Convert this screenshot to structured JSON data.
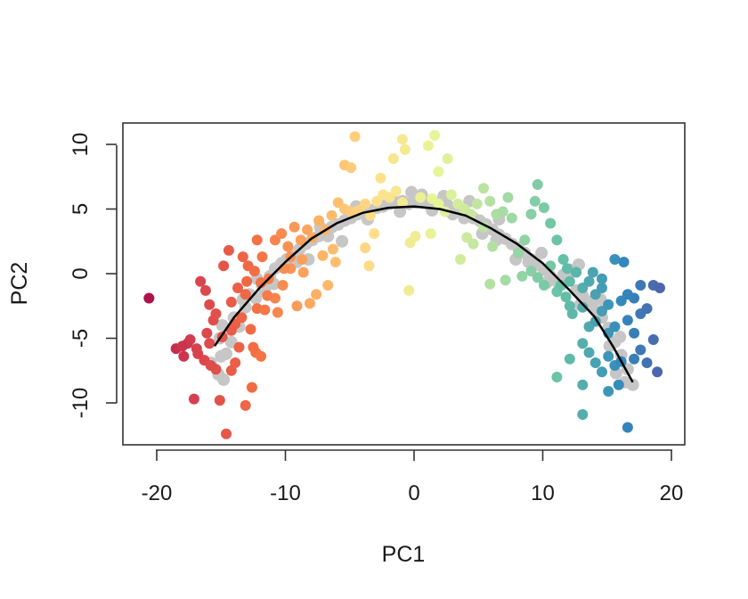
{
  "chart_data": {
    "type": "scatter",
    "title": "",
    "xlabel": "PC1",
    "ylabel": "PC2",
    "xlim": [
      -22,
      21
    ],
    "ylim": [
      -13.2,
      11.7
    ],
    "xticks": [
      -20,
      -10,
      0,
      10,
      20
    ],
    "xtick_labels": [
      "-20",
      "-10",
      "0",
      "10",
      "20"
    ],
    "yticks": [
      -10,
      -5,
      0,
      5,
      10
    ],
    "ytick_labels": [
      "-10",
      "-5",
      "0",
      "5",
      "10"
    ],
    "grid": false,
    "legend": "none",
    "colors": {
      "background_points": "#c6c6c6",
      "curve": "#000000",
      "gradient": [
        "#9e0142",
        "#d53e4f",
        "#f46d43",
        "#fdae61",
        "#fee08b",
        "#e6f598",
        "#abdda4",
        "#66c2a5",
        "#3288bd",
        "#5e4fa2"
      ]
    },
    "principal_curve": {
      "x": [
        -15.5,
        -14,
        -12,
        -10,
        -8,
        -6,
        -4,
        -2,
        0,
        2,
        4,
        6,
        8,
        10,
        12,
        14,
        15.5,
        17
      ],
      "y": [
        -5.6,
        -3.4,
        -1.1,
        0.9,
        2.7,
        3.9,
        4.7,
        5.1,
        5.2,
        5.0,
        4.5,
        3.5,
        2.3,
        0.8,
        -1.2,
        -3.3,
        -5.7,
        -8.4
      ]
    },
    "gray_points": [
      [
        -15.8,
        -6.9
      ],
      [
        -15.2,
        -7.8
      ],
      [
        -14.8,
        -8.2
      ],
      [
        -14.6,
        -6.2
      ],
      [
        -15.1,
        -5.0
      ],
      [
        -14.2,
        -5.3
      ],
      [
        -14.9,
        -4.0
      ],
      [
        -14.0,
        -3.4
      ],
      [
        -13.6,
        -4.1
      ],
      [
        -13.1,
        -2.6
      ],
      [
        -12.8,
        -1.6
      ],
      [
        -12.3,
        -1.9
      ],
      [
        -11.8,
        -0.9
      ],
      [
        -11.2,
        -0.2
      ],
      [
        -10.8,
        0.4
      ],
      [
        -10.3,
        0.8
      ],
      [
        -9.9,
        1.1
      ],
      [
        -9.4,
        1.6
      ],
      [
        -8.9,
        1.9
      ],
      [
        -8.4,
        2.3
      ],
      [
        -7.9,
        2.6
      ],
      [
        -7.4,
        2.9
      ],
      [
        -6.9,
        3.3
      ],
      [
        -6.4,
        3.6
      ],
      [
        -5.9,
        3.8
      ],
      [
        -5.4,
        4.1
      ],
      [
        -4.9,
        4.3
      ],
      [
        -4.4,
        4.6
      ],
      [
        -3.9,
        4.7
      ],
      [
        -3.4,
        4.9
      ],
      [
        -2.9,
        5.1
      ],
      [
        -2.4,
        5.2
      ],
      [
        -1.9,
        5.4
      ],
      [
        -1.4,
        5.5
      ],
      [
        -0.9,
        5.6
      ],
      [
        -0.4,
        5.4
      ],
      [
        0.1,
        5.5
      ],
      [
        0.6,
        5.6
      ],
      [
        1.1,
        5.4
      ],
      [
        1.6,
        5.3
      ],
      [
        2.1,
        5.6
      ],
      [
        2.6,
        5.3
      ],
      [
        3.1,
        5.1
      ],
      [
        3.6,
        4.9
      ],
      [
        4.1,
        4.6
      ],
      [
        4.6,
        4.3
      ],
      [
        5.1,
        4.1
      ],
      [
        5.6,
        3.8
      ],
      [
        6.1,
        3.4
      ],
      [
        6.6,
        3.0
      ],
      [
        7.1,
        2.7
      ],
      [
        7.6,
        2.3
      ],
      [
        8.1,
        2.0
      ],
      [
        8.6,
        1.6
      ],
      [
        9.1,
        1.1
      ],
      [
        9.6,
        0.7
      ],
      [
        10.1,
        0.3
      ],
      [
        10.6,
        -0.2
      ],
      [
        11.1,
        -0.6
      ],
      [
        11.6,
        -0.1
      ],
      [
        12.1,
        0.3
      ],
      [
        12.6,
        -1.3
      ],
      [
        13.1,
        -1.7
      ],
      [
        13.6,
        -2.3
      ],
      [
        14.1,
        -2.9
      ],
      [
        14.6,
        -3.4
      ],
      [
        15.1,
        -4.2
      ],
      [
        15.6,
        -5.3
      ],
      [
        16.1,
        -6.3
      ],
      [
        16.6,
        -7.4
      ],
      [
        17.0,
        -8.6
      ],
      [
        16.4,
        -8.4
      ],
      [
        15.7,
        -7.7
      ],
      [
        -13.3,
        -2.0
      ],
      [
        -11.6,
        -1.3
      ],
      [
        -9.1,
        0.9
      ],
      [
        -6.7,
        2.9
      ],
      [
        -3.6,
        4.2
      ],
      [
        -1.1,
        4.8
      ],
      [
        1.4,
        4.9
      ],
      [
        3.9,
        4.3
      ],
      [
        6.4,
        2.6
      ],
      [
        8.9,
        0.9
      ],
      [
        11.4,
        -0.9
      ],
      [
        13.9,
        -2.1
      ],
      [
        -15.0,
        -6.4
      ],
      [
        -7.3,
        3.6
      ],
      [
        -4.5,
        5.2
      ],
      [
        -2.3,
        5.9
      ],
      [
        -0.2,
        6.3
      ],
      [
        0.6,
        6.1
      ],
      [
        2.3,
        6.0
      ],
      [
        4.3,
        5.6
      ],
      [
        6.6,
        4.2
      ],
      [
        9.9,
        1.6
      ],
      [
        12.4,
        0.2
      ],
      [
        12.8,
        0.7
      ],
      [
        14.5,
        -2.0
      ],
      [
        -12.2,
        -0.4
      ],
      [
        -10.9,
        -0.8
      ],
      [
        -8.2,
        1.1
      ],
      [
        -5.6,
        2.5
      ],
      [
        3.0,
        4.6
      ],
      [
        5.3,
        3.1
      ],
      [
        7.9,
        1.1
      ],
      [
        10.3,
        -0.7
      ],
      [
        12.9,
        -2.4
      ],
      [
        15.2,
        -5.6
      ],
      [
        16.0,
        -4.9
      ]
    ],
    "colored_points": [
      [
        -20.6,
        -1.9
      ],
      [
        -18.5,
        -5.8
      ],
      [
        -17.9,
        -6.4
      ],
      [
        -17.4,
        -5.1
      ],
      [
        -16.9,
        -5.8
      ],
      [
        -17.1,
        -9.7
      ],
      [
        -16.3,
        -6.7
      ],
      [
        -15.9,
        -5.4
      ],
      [
        -16.1,
        -4.6
      ],
      [
        -15.6,
        -3.6
      ],
      [
        -15.4,
        -3.1
      ],
      [
        -15.9,
        -2.4
      ],
      [
        -16.2,
        -1.3
      ],
      [
        -16.6,
        -0.6
      ],
      [
        -15.1,
        -9.8
      ],
      [
        -14.6,
        -12.4
      ],
      [
        -14.2,
        -7.5
      ],
      [
        -13.6,
        -5.7
      ],
      [
        -13.1,
        -10.2
      ],
      [
        -12.6,
        -8.8
      ],
      [
        -14.8,
        0.6
      ],
      [
        -14.2,
        -2.2
      ],
      [
        -13.9,
        -3.9
      ],
      [
        -13.4,
        -3.4
      ],
      [
        -13.1,
        -1.6
      ],
      [
        -12.7,
        -4.3
      ],
      [
        -12.2,
        -2.7
      ],
      [
        -14.4,
        1.8
      ],
      [
        -13.3,
        1.3
      ],
      [
        -12.9,
        0.6
      ],
      [
        -12.2,
        2.6
      ],
      [
        -11.8,
        1.3
      ],
      [
        -11.3,
        -0.4
      ],
      [
        -10.8,
        2.6
      ],
      [
        -10.3,
        3.1
      ],
      [
        -9.8,
        2.1
      ],
      [
        -9.3,
        3.6
      ],
      [
        -8.8,
        2.6
      ],
      [
        -8.3,
        3.4
      ],
      [
        -7.9,
        2.8
      ],
      [
        -8.7,
        1.1
      ],
      [
        -9.6,
        0.4
      ],
      [
        -10.2,
        -0.9
      ],
      [
        -10.8,
        -1.9
      ],
      [
        -11.6,
        -2.8
      ],
      [
        -7.4,
        4.1
      ],
      [
        -6.9,
        3.4
      ],
      [
        -6.4,
        4.5
      ],
      [
        -5.9,
        5.5
      ],
      [
        -5.4,
        5.0
      ],
      [
        -4.9,
        4.8
      ],
      [
        -5.4,
        8.4
      ],
      [
        -4.9,
        8.2
      ],
      [
        -4.6,
        10.6
      ],
      [
        -6.3,
        1.9
      ],
      [
        -6.7,
        -0.9
      ],
      [
        -8.1,
        -2.3
      ],
      [
        -9.1,
        -2.5
      ],
      [
        -10.6,
        -3.0
      ],
      [
        -7.6,
        -1.6
      ],
      [
        -4.3,
        4.9
      ],
      [
        -3.8,
        5.4
      ],
      [
        -3.4,
        4.5
      ],
      [
        -2.9,
        5.6
      ],
      [
        -2.4,
        6.1
      ],
      [
        -1.9,
        5.9
      ],
      [
        -1.4,
        6.4
      ],
      [
        -0.9,
        5.5
      ],
      [
        -2.6,
        7.4
      ],
      [
        -1.6,
        8.9
      ],
      [
        -0.7,
        9.6
      ],
      [
        0.5,
        5.9
      ],
      [
        -3.8,
        2.0
      ],
      [
        -3.5,
        0.6
      ],
      [
        -3.1,
        3.1
      ],
      [
        -0.9,
        10.4
      ],
      [
        1.1,
        9.9
      ],
      [
        1.6,
        10.7
      ],
      [
        0.1,
        2.9
      ],
      [
        -0.3,
        2.4
      ],
      [
        -0.4,
        -1.3
      ],
      [
        1.4,
        5.8
      ],
      [
        1.9,
        5.4
      ],
      [
        2.4,
        4.8
      ],
      [
        2.9,
        6.1
      ],
      [
        3.4,
        5.4
      ],
      [
        3.9,
        5.0
      ],
      [
        1.9,
        7.9
      ],
      [
        2.6,
        8.9
      ],
      [
        1.3,
        3.1
      ],
      [
        4.4,
        4.6
      ],
      [
        4.9,
        5.4
      ],
      [
        5.4,
        6.6
      ],
      [
        5.9,
        5.6
      ],
      [
        6.4,
        4.6
      ],
      [
        6.9,
        4.8
      ],
      [
        7.3,
        5.9
      ],
      [
        7.6,
        4.3
      ],
      [
        5.4,
        3.6
      ],
      [
        4.1,
        2.8
      ],
      [
        3.6,
        1.1
      ],
      [
        5.9,
        -0.8
      ],
      [
        7.1,
        -0.5
      ],
      [
        8.1,
        1.6
      ],
      [
        8.6,
        2.6
      ],
      [
        9.1,
        4.6
      ],
      [
        9.4,
        5.6
      ],
      [
        9.6,
        6.9
      ],
      [
        10.1,
        5.1
      ],
      [
        10.6,
        3.9
      ],
      [
        11.1,
        2.6
      ],
      [
        11.6,
        1.1
      ],
      [
        10.6,
        0.6
      ],
      [
        9.6,
        -0.3
      ],
      [
        10.1,
        -0.9
      ],
      [
        11.1,
        -1.4
      ],
      [
        12.1,
        -0.6
      ],
      [
        12.6,
        0.1
      ],
      [
        13.1,
        -1.1
      ],
      [
        13.6,
        -0.6
      ],
      [
        14.1,
        -1.6
      ],
      [
        14.6,
        -0.4
      ],
      [
        12.1,
        -2.5
      ],
      [
        13.1,
        -2.6
      ],
      [
        11.8,
        -1.8
      ],
      [
        15.6,
        1.1
      ],
      [
        16.3,
        0.9
      ],
      [
        16.1,
        -2.1
      ],
      [
        17.6,
        -0.9
      ],
      [
        18.6,
        -0.9
      ],
      [
        19.1,
        -1.1
      ],
      [
        17.1,
        -1.9
      ],
      [
        12.3,
        -3.1
      ],
      [
        13.6,
        -4.1
      ],
      [
        14.1,
        -3.7
      ],
      [
        14.6,
        -2.9
      ],
      [
        15.1,
        -4.6
      ],
      [
        15.6,
        -4.1
      ],
      [
        13.1,
        -5.4
      ],
      [
        13.6,
        -6.1
      ],
      [
        16.6,
        -3.6
      ],
      [
        17.1,
        -4.6
      ],
      [
        17.6,
        -3.1
      ],
      [
        18.1,
        -2.7
      ],
      [
        12.1,
        -6.6
      ],
      [
        11.1,
        -8.0
      ],
      [
        14.1,
        -6.9
      ],
      [
        14.6,
        -7.6
      ],
      [
        15.1,
        -6.4
      ],
      [
        15.6,
        -7.1
      ],
      [
        16.1,
        -6.8
      ],
      [
        17.1,
        -6.6
      ],
      [
        17.6,
        -5.9
      ],
      [
        18.1,
        -6.9
      ],
      [
        18.6,
        -5.1
      ],
      [
        18.9,
        -7.6
      ],
      [
        13.1,
        -8.6
      ],
      [
        15.1,
        -9.1
      ],
      [
        15.9,
        -8.6
      ],
      [
        16.6,
        -11.9
      ],
      [
        13.1,
        -10.9
      ],
      [
        -12.3,
        -6.1
      ],
      [
        -11.9,
        -6.4
      ],
      [
        -12.5,
        -5.7
      ],
      [
        -13.9,
        -6.9
      ],
      [
        -16.8,
        -6.2
      ],
      [
        -17.6,
        -5.4
      ],
      [
        -18.0,
        -5.6
      ],
      [
        -15.4,
        -7.4
      ],
      [
        -15.8,
        -7.1
      ],
      [
        -14.9,
        -4.9
      ],
      [
        -14.2,
        -4.4
      ],
      [
        -13.7,
        -1.1
      ],
      [
        -13.0,
        -0.6
      ],
      [
        -12.4,
        0.2
      ],
      [
        -11.9,
        -0.7
      ],
      [
        -11.4,
        -1.7
      ],
      [
        -10.1,
        0.4
      ],
      [
        -9.6,
        1.3
      ],
      [
        -8.6,
        0.1
      ],
      [
        -7.1,
        1.4
      ],
      [
        -6.1,
        0.9
      ],
      [
        4.6,
        2.3
      ],
      [
        6.1,
        2.1
      ],
      [
        8.4,
        -0.2
      ],
      [
        9.1,
        0.2
      ],
      [
        11.4,
        -0.9
      ],
      [
        11.9,
        0.4
      ],
      [
        13.9,
        0.1
      ],
      [
        14.6,
        -1.1
      ],
      [
        15.1,
        -2.4
      ],
      [
        16.6,
        -1.6
      ]
    ]
  }
}
